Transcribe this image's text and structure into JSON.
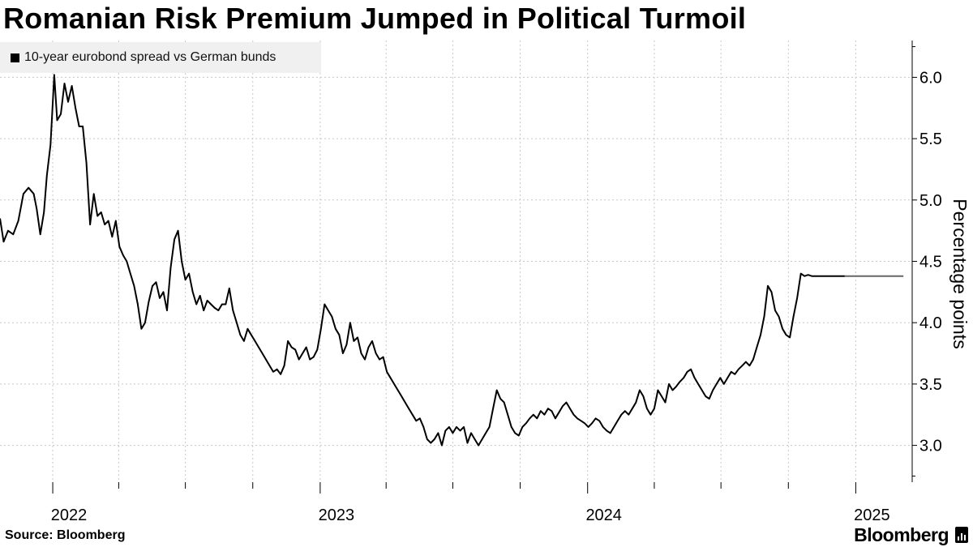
{
  "title": "Romanian Risk Premium Jumped in Political Turmoil",
  "source": "Source: Bloomberg",
  "brand": "Bloomberg",
  "colors": {
    "line": "#000000",
    "recent_line": "#666666",
    "grid": "#c8c8c8"
  },
  "chart_data": {
    "type": "line",
    "title": "Romanian Risk Premium Jumped in Political Turmoil",
    "ylabel": "Percentage points",
    "xlabel": "",
    "legend": "top-left",
    "grid": true,
    "ylim": [
      2.7,
      6.3
    ],
    "xlim": [
      "2021-10-21",
      "2025-03-19"
    ],
    "y_ticks": [
      3.0,
      3.5,
      4.0,
      4.5,
      5.0,
      5.5,
      6.0
    ],
    "x_tick_labels": [
      "2022",
      "2023",
      "2024",
      "2025"
    ],
    "series": [
      {
        "name": "10-year eurobond spread vs German bunds",
        "x": [
          "2021-10-21",
          "2021-10-26",
          "2021-11-01",
          "2021-11-08",
          "2021-11-15",
          "2021-11-22",
          "2021-11-29",
          "2021-12-06",
          "2021-12-10",
          "2021-12-15",
          "2021-12-20",
          "2021-12-24",
          "2021-12-29",
          "2022-01-03",
          "2022-01-07",
          "2022-01-12",
          "2022-01-17",
          "2022-01-22",
          "2022-01-27",
          "2022-02-01",
          "2022-02-06",
          "2022-02-11",
          "2022-02-16",
          "2022-02-21",
          "2022-02-26",
          "2022-03-03",
          "2022-03-08",
          "2022-03-13",
          "2022-03-18",
          "2022-03-23",
          "2022-03-28",
          "2022-04-02",
          "2022-04-07",
          "2022-04-12",
          "2022-04-17",
          "2022-04-22",
          "2022-04-27",
          "2022-05-02",
          "2022-05-07",
          "2022-05-12",
          "2022-05-17",
          "2022-05-22",
          "2022-05-27",
          "2022-06-01",
          "2022-06-06",
          "2022-06-11",
          "2022-06-16",
          "2022-06-21",
          "2022-06-26",
          "2022-07-01",
          "2022-07-06",
          "2022-07-11",
          "2022-07-16",
          "2022-07-21",
          "2022-07-26",
          "2022-07-31",
          "2022-08-05",
          "2022-08-10",
          "2022-08-15",
          "2022-08-20",
          "2022-08-25",
          "2022-08-30",
          "2022-09-04",
          "2022-09-09",
          "2022-09-14",
          "2022-09-19",
          "2022-09-24",
          "2022-09-29",
          "2022-10-04",
          "2022-10-09",
          "2022-10-14",
          "2022-10-19",
          "2022-10-24",
          "2022-10-29",
          "2022-11-03",
          "2022-11-08",
          "2022-11-13",
          "2022-11-18",
          "2022-11-23",
          "2022-11-28",
          "2022-12-03",
          "2022-12-08",
          "2022-12-13",
          "2022-12-18",
          "2022-12-23",
          "2022-12-28",
          "2023-01-02",
          "2023-01-07",
          "2023-01-12",
          "2023-01-17",
          "2023-01-22",
          "2023-01-27",
          "2023-02-01",
          "2023-02-06",
          "2023-02-11",
          "2023-02-16",
          "2023-02-21",
          "2023-02-26",
          "2023-03-03",
          "2023-03-08",
          "2023-03-13",
          "2023-03-18",
          "2023-03-23",
          "2023-03-28",
          "2023-04-02",
          "2023-04-07",
          "2023-04-12",
          "2023-04-17",
          "2023-04-22",
          "2023-04-27",
          "2023-05-02",
          "2023-05-07",
          "2023-05-12",
          "2023-05-17",
          "2023-05-22",
          "2023-05-27",
          "2023-06-01",
          "2023-06-06",
          "2023-06-11",
          "2023-06-16",
          "2023-06-21",
          "2023-06-26",
          "2023-07-01",
          "2023-07-06",
          "2023-07-11",
          "2023-07-16",
          "2023-07-21",
          "2023-07-26",
          "2023-07-31",
          "2023-08-05",
          "2023-08-10",
          "2023-08-15",
          "2023-08-20",
          "2023-08-25",
          "2023-08-30",
          "2023-09-04",
          "2023-09-09",
          "2023-09-14",
          "2023-09-19",
          "2023-09-24",
          "2023-09-29",
          "2023-10-04",
          "2023-10-09",
          "2023-10-14",
          "2023-10-19",
          "2023-10-24",
          "2023-10-29",
          "2023-11-03",
          "2023-11-08",
          "2023-11-13",
          "2023-11-18",
          "2023-11-23",
          "2023-11-28",
          "2023-12-03",
          "2023-12-08",
          "2023-12-13",
          "2023-12-18",
          "2023-12-23",
          "2023-12-28",
          "2024-01-02",
          "2024-01-07",
          "2024-01-12",
          "2024-01-17",
          "2024-01-22",
          "2024-01-27",
          "2024-02-01",
          "2024-02-06",
          "2024-02-11",
          "2024-02-16",
          "2024-02-21",
          "2024-02-26",
          "2024-03-02",
          "2024-03-07",
          "2024-03-12",
          "2024-03-17",
          "2024-03-22",
          "2024-03-27",
          "2024-04-01",
          "2024-04-06",
          "2024-04-11",
          "2024-04-16",
          "2024-04-21",
          "2024-04-26",
          "2024-05-01",
          "2024-05-06",
          "2024-05-11",
          "2024-05-16",
          "2024-05-21",
          "2024-05-26",
          "2024-05-31",
          "2024-06-05",
          "2024-06-10",
          "2024-06-15",
          "2024-06-20",
          "2024-06-25",
          "2024-06-30",
          "2024-07-05",
          "2024-07-10",
          "2024-07-15",
          "2024-07-20",
          "2024-07-25",
          "2024-07-30",
          "2024-08-04",
          "2024-08-09",
          "2024-08-14",
          "2024-08-19",
          "2024-08-24",
          "2024-08-29",
          "2024-09-03",
          "2024-09-08",
          "2024-09-13",
          "2024-09-18",
          "2024-09-23",
          "2024-09-28",
          "2024-10-03",
          "2024-10-08",
          "2024-10-13",
          "2024-10-18",
          "2024-10-23",
          "2024-10-28",
          "2024-11-02",
          "2024-11-07",
          "2024-11-12",
          "2024-11-17",
          "2024-11-22",
          "2024-11-27",
          "2024-12-02",
          "2024-12-07",
          "2024-12-12",
          "2024-12-17",
          "2024-12-22",
          "2024-12-27",
          "2025-01-01",
          "2025-01-06",
          "2025-01-11",
          "2025-01-16",
          "2025-01-21",
          "2025-01-26",
          "2025-01-31",
          "2025-02-05",
          "2025-02-10",
          "2025-02-15",
          "2025-02-20",
          "2025-02-25",
          "2025-03-02",
          "2025-03-07",
          "2025-03-12",
          "2025-03-17"
        ],
        "y": [
          4.85,
          4.66,
          4.75,
          4.72,
          4.83,
          5.05,
          5.1,
          5.05,
          4.93,
          4.72,
          4.9,
          5.2,
          5.45,
          6.02,
          5.65,
          5.7,
          5.95,
          5.8,
          5.93,
          5.75,
          5.6,
          5.6,
          5.3,
          4.8,
          5.05,
          4.87,
          4.9,
          4.8,
          4.83,
          4.7,
          4.83,
          4.62,
          4.55,
          4.5,
          4.4,
          4.3,
          4.15,
          3.95,
          4.0,
          4.17,
          4.3,
          4.33,
          4.2,
          4.25,
          4.1,
          4.45,
          4.68,
          4.75,
          4.5,
          4.35,
          4.4,
          4.25,
          4.15,
          4.22,
          4.1,
          4.18,
          4.15,
          4.12,
          4.1,
          4.15,
          4.15,
          4.28,
          4.1,
          4.0,
          3.9,
          3.85,
          3.95,
          3.9,
          3.85,
          3.8,
          3.75,
          3.7,
          3.65,
          3.6,
          3.62,
          3.58,
          3.65,
          3.85,
          3.8,
          3.78,
          3.7,
          3.75,
          3.8,
          3.7,
          3.72,
          3.78,
          3.95,
          4.15,
          4.1,
          4.05,
          3.95,
          3.9,
          3.75,
          3.82,
          4.0,
          3.85,
          3.88,
          3.75,
          3.7,
          3.8,
          3.85,
          3.75,
          3.7,
          3.72,
          3.6,
          3.55,
          3.5,
          3.45,
          3.4,
          3.35,
          3.3,
          3.25,
          3.2,
          3.22,
          3.15,
          3.05,
          3.02,
          3.05,
          3.1,
          3.0,
          3.12,
          3.15,
          3.1,
          3.15,
          3.12,
          3.15,
          3.02,
          3.1,
          3.05,
          3.0,
          3.05,
          3.1,
          3.15,
          3.3,
          3.45,
          3.38,
          3.35,
          3.25,
          3.15,
          3.1,
          3.08,
          3.15,
          3.18,
          3.22,
          3.25,
          3.22,
          3.28,
          3.25,
          3.3,
          3.28,
          3.22,
          3.27,
          3.32,
          3.35,
          3.3,
          3.25,
          3.22,
          3.2,
          3.18,
          3.15,
          3.18,
          3.22,
          3.2,
          3.15,
          3.12,
          3.1,
          3.15,
          3.2,
          3.25,
          3.28,
          3.25,
          3.3,
          3.35,
          3.45,
          3.4,
          3.3,
          3.25,
          3.3,
          3.45,
          3.4,
          3.35,
          3.5,
          3.45,
          3.48,
          3.52,
          3.55,
          3.6,
          3.62,
          3.55,
          3.5,
          3.45,
          3.4,
          3.38,
          3.45,
          3.5,
          3.55,
          3.5,
          3.55,
          3.6,
          3.58,
          3.62,
          3.65,
          3.68,
          3.65,
          3.7,
          3.8,
          3.9,
          4.05,
          4.3,
          4.25,
          4.1,
          4.05,
          3.95,
          3.9,
          3.88,
          4.05,
          4.2,
          4.4,
          4.38,
          4.39,
          4.38,
          4.38,
          4.38,
          4.38,
          4.38,
          4.38,
          4.38,
          4.38,
          4.38,
          4.38,
          4.38,
          4.38,
          4.38,
          4.38,
          4.38,
          4.38,
          4.38,
          4.38,
          4.38,
          4.38,
          4.38,
          4.38,
          4.38,
          4.38,
          4.38,
          4.38,
          4.38,
          4.38
        ]
      }
    ]
  }
}
